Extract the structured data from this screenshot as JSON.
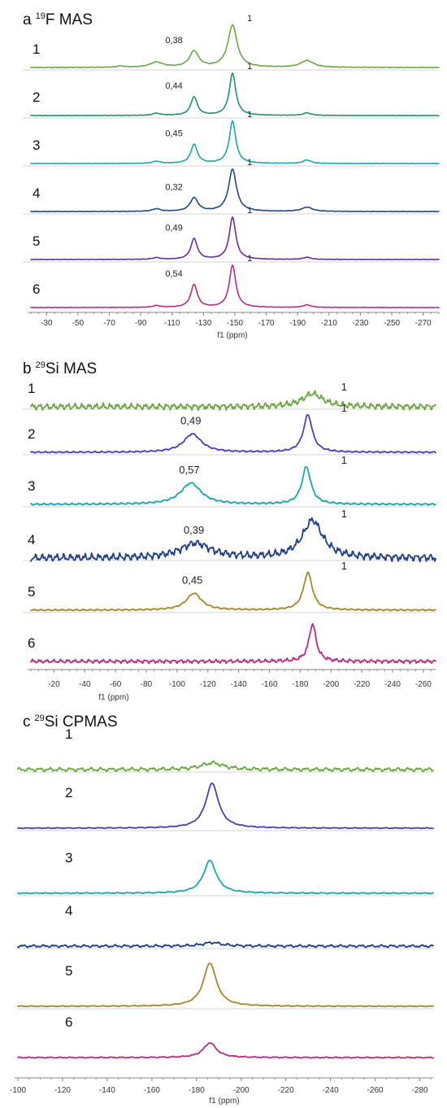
{
  "chart_data": [
    {
      "type": "line",
      "panel_letter": "a",
      "title_sup": "19",
      "title_rest": "F MAS",
      "xlabel": "f1 (ppm)",
      "xlim": [
        -20,
        -280
      ],
      "xticks": [
        -30,
        -50,
        -70,
        -90,
        -110,
        -130,
        -150,
        -170,
        -190,
        -210,
        -230,
        -250,
        -270
      ],
      "tick_labels": [
        "-30",
        "-50",
        "-70",
        "-90",
        "-110",
        "-130",
        "-150",
        "-170",
        "-190",
        "-210",
        "-230",
        "-250",
        "-270"
      ],
      "grid": false,
      "series": [
        {
          "label": "1",
          "color": "#6aa842",
          "noise": 0.008,
          "peaks": [
            {
              "x": -148.5,
              "height": 1.0,
              "width": 3.5
            },
            {
              "x": -124,
              "height": 0.38,
              "width": 3.5
            },
            {
              "x": -100,
              "height": 0.12,
              "width": 5
            },
            {
              "x": -196,
              "height": 0.16,
              "width": 5
            },
            {
              "x": -77,
              "height": 0.03,
              "width": 3
            }
          ],
          "annotations": [
            {
              "text": "0,38",
              "x": -124,
              "y": 0.38
            },
            {
              "text": "1",
              "x": -148.5,
              "y": 1.0
            }
          ]
        },
        {
          "label": "2",
          "color": "#209468",
          "noise": 0.006,
          "peaks": [
            {
              "x": -148.5,
              "height": 1.0,
              "width": 2.5
            },
            {
              "x": -124,
              "height": 0.44,
              "width": 2.5
            },
            {
              "x": -100,
              "height": 0.05,
              "width": 3
            },
            {
              "x": -196,
              "height": 0.06,
              "width": 3
            }
          ],
          "annotations": [
            {
              "text": "0,44",
              "x": -124,
              "y": 0.44
            },
            {
              "text": "1",
              "x": -148.5,
              "y": 1.0
            }
          ]
        },
        {
          "label": "3",
          "color": "#1aa8a8",
          "noise": 0.006,
          "peaks": [
            {
              "x": -148.5,
              "height": 1.0,
              "width": 2.5
            },
            {
              "x": -124,
              "height": 0.45,
              "width": 2.5
            },
            {
              "x": -100,
              "height": 0.05,
              "width": 3
            },
            {
              "x": -196,
              "height": 0.08,
              "width": 3
            }
          ],
          "annotations": [
            {
              "text": "0,45",
              "x": -124,
              "y": 0.45
            },
            {
              "text": "1",
              "x": -148.5,
              "y": 1.0
            }
          ]
        },
        {
          "label": "4",
          "color": "#1f4790",
          "noise": 0.006,
          "peaks": [
            {
              "x": -148.5,
              "height": 1.0,
              "width": 3
            },
            {
              "x": -124,
              "height": 0.32,
              "width": 3
            },
            {
              "x": -100,
              "height": 0.06,
              "width": 3
            },
            {
              "x": -196,
              "height": 0.1,
              "width": 4
            }
          ],
          "annotations": [
            {
              "text": "0,32",
              "x": -124,
              "y": 0.32
            },
            {
              "text": "1",
              "x": -148.5,
              "y": 1.0
            }
          ]
        },
        {
          "label": "5",
          "color": "#6b2c9e",
          "noise": 0.006,
          "peaks": [
            {
              "x": -148.5,
              "height": 1.0,
              "width": 2.5
            },
            {
              "x": -124,
              "height": 0.49,
              "width": 2.5
            },
            {
              "x": -100,
              "height": 0.04,
              "width": 3
            },
            {
              "x": -196,
              "height": 0.05,
              "width": 3
            }
          ],
          "annotations": [
            {
              "text": "0,49",
              "x": -124,
              "y": 0.49
            },
            {
              "text": "1",
              "x": -148.5,
              "y": 1.0
            }
          ]
        },
        {
          "label": "6",
          "color": "#b92c86",
          "noise": 0.006,
          "peaks": [
            {
              "x": -148.5,
              "height": 1.0,
              "width": 2.5
            },
            {
              "x": -124,
              "height": 0.54,
              "width": 2.5
            },
            {
              "x": -100,
              "height": 0.04,
              "width": 3
            },
            {
              "x": -196,
              "height": 0.06,
              "width": 3
            }
          ],
          "annotations": [
            {
              "text": "0,54",
              "x": -124,
              "y": 0.54
            },
            {
              "text": "1",
              "x": -148.5,
              "y": 1.0
            }
          ]
        }
      ]
    },
    {
      "type": "line",
      "panel_letter": "b",
      "title_sup": "29",
      "title_rest": "Si MAS",
      "xlabel": "f1 (ppm)",
      "xlim": [
        -5,
        -268
      ],
      "xticks": [
        -20,
        -40,
        -60,
        -80,
        -100,
        -120,
        -140,
        -160,
        -180,
        -200,
        -220,
        -240,
        -260
      ],
      "tick_labels": [
        "-20",
        "-40",
        "-60",
        "-80",
        "-100",
        "-120",
        "-140",
        "-160",
        "-180",
        "-200",
        "-220",
        "-240",
        "-260"
      ],
      "grid": false,
      "series": [
        {
          "label": "1",
          "color": "#6aa842",
          "noise": 0.1,
          "peaks": [
            {
              "x": -188,
              "height": 0.35,
              "width": 8
            }
          ],
          "annotations": [
            {
              "text": "1",
              "x": -195,
              "y": 0.35
            }
          ]
        },
        {
          "label": "2",
          "color": "#4a3fc0",
          "noise": 0.025,
          "peaks": [
            {
              "x": -185,
              "height": 1.0,
              "width": 3.5
            },
            {
              "x": -110,
              "height": 0.49,
              "width": 7
            }
          ],
          "annotations": [
            {
              "text": "0,49",
              "x": -110,
              "y": 0.49
            },
            {
              "text": "1",
              "x": -195,
              "y": 1.0
            }
          ]
        },
        {
          "label": "3",
          "color": "#1aa8a8",
          "noise": 0.03,
          "peaks": [
            {
              "x": -184,
              "height": 1.0,
              "width": 3.5
            },
            {
              "x": -109,
              "height": 0.57,
              "width": 8
            }
          ],
          "annotations": [
            {
              "text": "0,57",
              "x": -109,
              "y": 0.57
            },
            {
              "text": "1",
              "x": -195,
              "y": 1.0
            }
          ]
        },
        {
          "label": "4",
          "color": "#1f3f8a",
          "noise": 0.12,
          "peaks": [
            {
              "x": -188,
              "height": 1.0,
              "width": 8
            },
            {
              "x": -112,
              "height": 0.39,
              "width": 12
            }
          ],
          "annotations": [
            {
              "text": "0,39",
              "x": -112,
              "y": 0.39
            },
            {
              "text": "1",
              "x": -195,
              "y": 1.0
            }
          ]
        },
        {
          "label": "5",
          "color": "#a4892c",
          "noise": 0.025,
          "peaks": [
            {
              "x": -185,
              "height": 1.0,
              "width": 3.5
            },
            {
              "x": -111,
              "height": 0.45,
              "width": 6
            }
          ],
          "annotations": [
            {
              "text": "0,45",
              "x": -111,
              "y": 0.45
            },
            {
              "text": "1",
              "x": -195,
              "y": 1.0
            }
          ]
        },
        {
          "label": "6",
          "color": "#b92c86",
          "noise": 0.06,
          "peaks": [
            {
              "x": -188,
              "height": 1.0,
              "width": 2.8
            }
          ],
          "annotations": []
        }
      ]
    },
    {
      "type": "line",
      "panel_letter": "c",
      "title_sup": "29",
      "title_rest": "Si CPMAS",
      "xlabel": "f1 (ppm)",
      "xlim": [
        -100,
        -286
      ],
      "xticks": [
        -100,
        -120,
        -140,
        -160,
        -180,
        -200,
        -220,
        -240,
        -260,
        -280
      ],
      "tick_labels": [
        "-100",
        "-120",
        "-140",
        "-160",
        "-180",
        "-200",
        "-220",
        "-240",
        "-260",
        "-280"
      ],
      "grid": false,
      "series": [
        {
          "label": "1",
          "color": "#6aa842",
          "noise": 0.05,
          "peaks": [
            {
              "x": -187,
              "height": 0.15,
              "width": 6
            }
          ],
          "annotations": []
        },
        {
          "label": "2",
          "color": "#4a3fc0",
          "noise": 0.012,
          "peaks": [
            {
              "x": -187,
              "height": 1.0,
              "width": 3.5
            }
          ],
          "annotations": []
        },
        {
          "label": "3",
          "color": "#1aa8a8",
          "noise": 0.015,
          "peaks": [
            {
              "x": -186,
              "height": 0.73,
              "width": 3.5
            }
          ],
          "annotations": []
        },
        {
          "label": "4",
          "color": "#1f3f8a",
          "noise": 0.035,
          "peaks": [
            {
              "x": -187,
              "height": 0.08,
              "width": 5
            }
          ],
          "annotations": []
        },
        {
          "label": "5",
          "color": "#a4892c",
          "noise": 0.012,
          "peaks": [
            {
              "x": -186,
              "height": 0.97,
              "width": 3.5
            }
          ],
          "annotations": []
        },
        {
          "label": "6",
          "color": "#b92c86",
          "noise": 0.015,
          "peaks": [
            {
              "x": -186,
              "height": 0.33,
              "width": 3.5
            }
          ],
          "annotations": []
        }
      ]
    }
  ]
}
